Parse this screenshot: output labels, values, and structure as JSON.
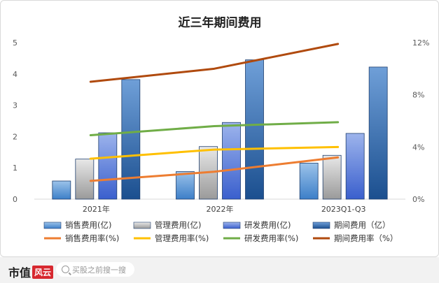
{
  "chart_data": {
    "type": "bar",
    "title": "近三年期间费用",
    "categories": [
      "2021年",
      "2022年",
      "2023Q1-Q3"
    ],
    "ylim_left": [
      0,
      5
    ],
    "left_ticks": [
      "0",
      "1",
      "2",
      "3",
      "4",
      "5"
    ],
    "ylim_right": [
      0,
      12
    ],
    "right_ticks": [
      "0%",
      "4%",
      "8%",
      "12%"
    ],
    "bar_series": [
      {
        "name": "销售费用(亿)",
        "values": [
          0.58,
          0.88,
          1.15
        ],
        "color_top": "#9cc3ea",
        "color_bottom": "#3d7fc8"
      },
      {
        "name": "管理费用(亿)",
        "values": [
          1.28,
          1.68,
          1.4
        ],
        "color_top": "#e8e8e8",
        "color_bottom": "#9a9a9a"
      },
      {
        "name": "研发费用(亿)",
        "values": [
          2.12,
          2.45,
          2.1
        ],
        "color_top": "#9db4ec",
        "color_bottom": "#3a5fcd"
      },
      {
        "name": "期间费用（亿）",
        "values": [
          3.82,
          4.45,
          4.22
        ],
        "color_top": "#6f9fd8",
        "color_bottom": "#1b4f8f"
      }
    ],
    "line_series": [
      {
        "name": "销售费用率(%)",
        "values": [
          1.4,
          2.1,
          3.2
        ],
        "color": "#ed7d31"
      },
      {
        "name": "管理费用率(%)",
        "values": [
          3.1,
          3.8,
          4.0
        ],
        "color": "#ffc000"
      },
      {
        "name": "研发费用率(%)",
        "values": [
          4.9,
          5.6,
          5.9
        ],
        "color": "#70ad47"
      },
      {
        "name": "期间费用率（%）",
        "values": [
          9.0,
          10.0,
          11.9
        ],
        "color": "#b04a0e"
      }
    ]
  },
  "footer": {
    "brand_text": "市值",
    "brand_badge": "风云",
    "search_placeholder": "买股之前搜一搜"
  }
}
